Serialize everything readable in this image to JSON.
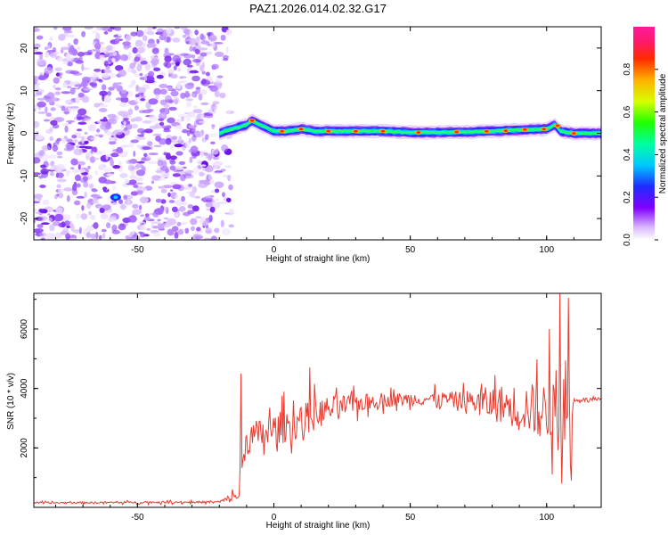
{
  "title": "PAZ1.2026.014.02.32.G17",
  "chart_data": [
    {
      "type": "heatmap",
      "xlabel": "Height of straight line (km)",
      "ylabel": "Frequency (Hz)",
      "xlim": [
        -88,
        120
      ],
      "ylim": [
        -25,
        25
      ],
      "xticks": [
        -50,
        0,
        50,
        100
      ],
      "yticks": [
        -20,
        -10,
        0,
        10,
        20
      ],
      "noise_region_x": [
        -88,
        -20
      ],
      "signal_region_x": [
        -20,
        120
      ],
      "signal_line_freq_hz": [
        [
          -20,
          0
        ],
        [
          -18,
          0.5
        ],
        [
          -15,
          1
        ],
        [
          -10,
          2
        ],
        [
          -8,
          3
        ],
        [
          -5,
          2
        ],
        [
          0,
          0.5
        ],
        [
          5,
          0.5
        ],
        [
          10,
          1
        ],
        [
          15,
          0.5
        ],
        [
          20,
          0.5
        ],
        [
          30,
          0.5
        ],
        [
          40,
          0.5
        ],
        [
          50,
          0.2
        ],
        [
          60,
          0.2
        ],
        [
          70,
          0.3
        ],
        [
          80,
          0.5
        ],
        [
          90,
          0.8
        ],
        [
          100,
          1
        ],
        [
          103,
          2
        ],
        [
          105,
          0.5
        ],
        [
          110,
          0
        ],
        [
          120,
          0
        ]
      ],
      "colorbar": {
        "label": "Normalized spectral amplitude",
        "range": [
          0,
          1
        ],
        "ticks": [
          "0.0",
          "0.2",
          "0.4",
          "0.6",
          "0.8"
        ]
      }
    },
    {
      "type": "line",
      "xlabel": "Height of straight line (km)",
      "ylabel": "SNR (10 * v/v)",
      "xlim": [
        -88,
        120
      ],
      "ylim": [
        0,
        7200
      ],
      "xticks": [
        -50,
        0,
        50,
        100
      ],
      "yticks": [
        2000,
        4000,
        6000
      ],
      "color": "#e83a2f",
      "envelope": [
        {
          "x": -88,
          "mean": 150,
          "spread": 60
        },
        {
          "x": -20,
          "mean": 180,
          "spread": 80
        },
        {
          "x": -13,
          "mean": 400,
          "spread": 500
        },
        {
          "x": -10,
          "mean": 2300,
          "spread": 1200
        },
        {
          "x": 0,
          "mean": 2600,
          "spread": 1200
        },
        {
          "x": 10,
          "mean": 2900,
          "spread": 1300
        },
        {
          "x": 20,
          "mean": 3300,
          "spread": 1000
        },
        {
          "x": 30,
          "mean": 3500,
          "spread": 700
        },
        {
          "x": 40,
          "mean": 3600,
          "spread": 500
        },
        {
          "x": 50,
          "mean": 3650,
          "spread": 500
        },
        {
          "x": 60,
          "mean": 3650,
          "spread": 500
        },
        {
          "x": 70,
          "mean": 3600,
          "spread": 700
        },
        {
          "x": 80,
          "mean": 3500,
          "spread": 1300
        },
        {
          "x": 90,
          "mean": 3400,
          "spread": 1700
        },
        {
          "x": 100,
          "mean": 3200,
          "spread": 2200
        },
        {
          "x": 109,
          "mean": 3000,
          "spread": 2500
        },
        {
          "x": 110,
          "mean": 3620,
          "spread": 150
        },
        {
          "x": 120,
          "mean": 3620,
          "spread": 150
        }
      ],
      "spikes": [
        {
          "x": -12,
          "y": 4500
        },
        {
          "x": 13,
          "y": 4700
        },
        {
          "x": 101,
          "y": 6000
        },
        {
          "x": 105,
          "y": 7200
        },
        {
          "x": 108,
          "y": 7050
        },
        {
          "x": 109,
          "y": 900
        }
      ]
    }
  ]
}
